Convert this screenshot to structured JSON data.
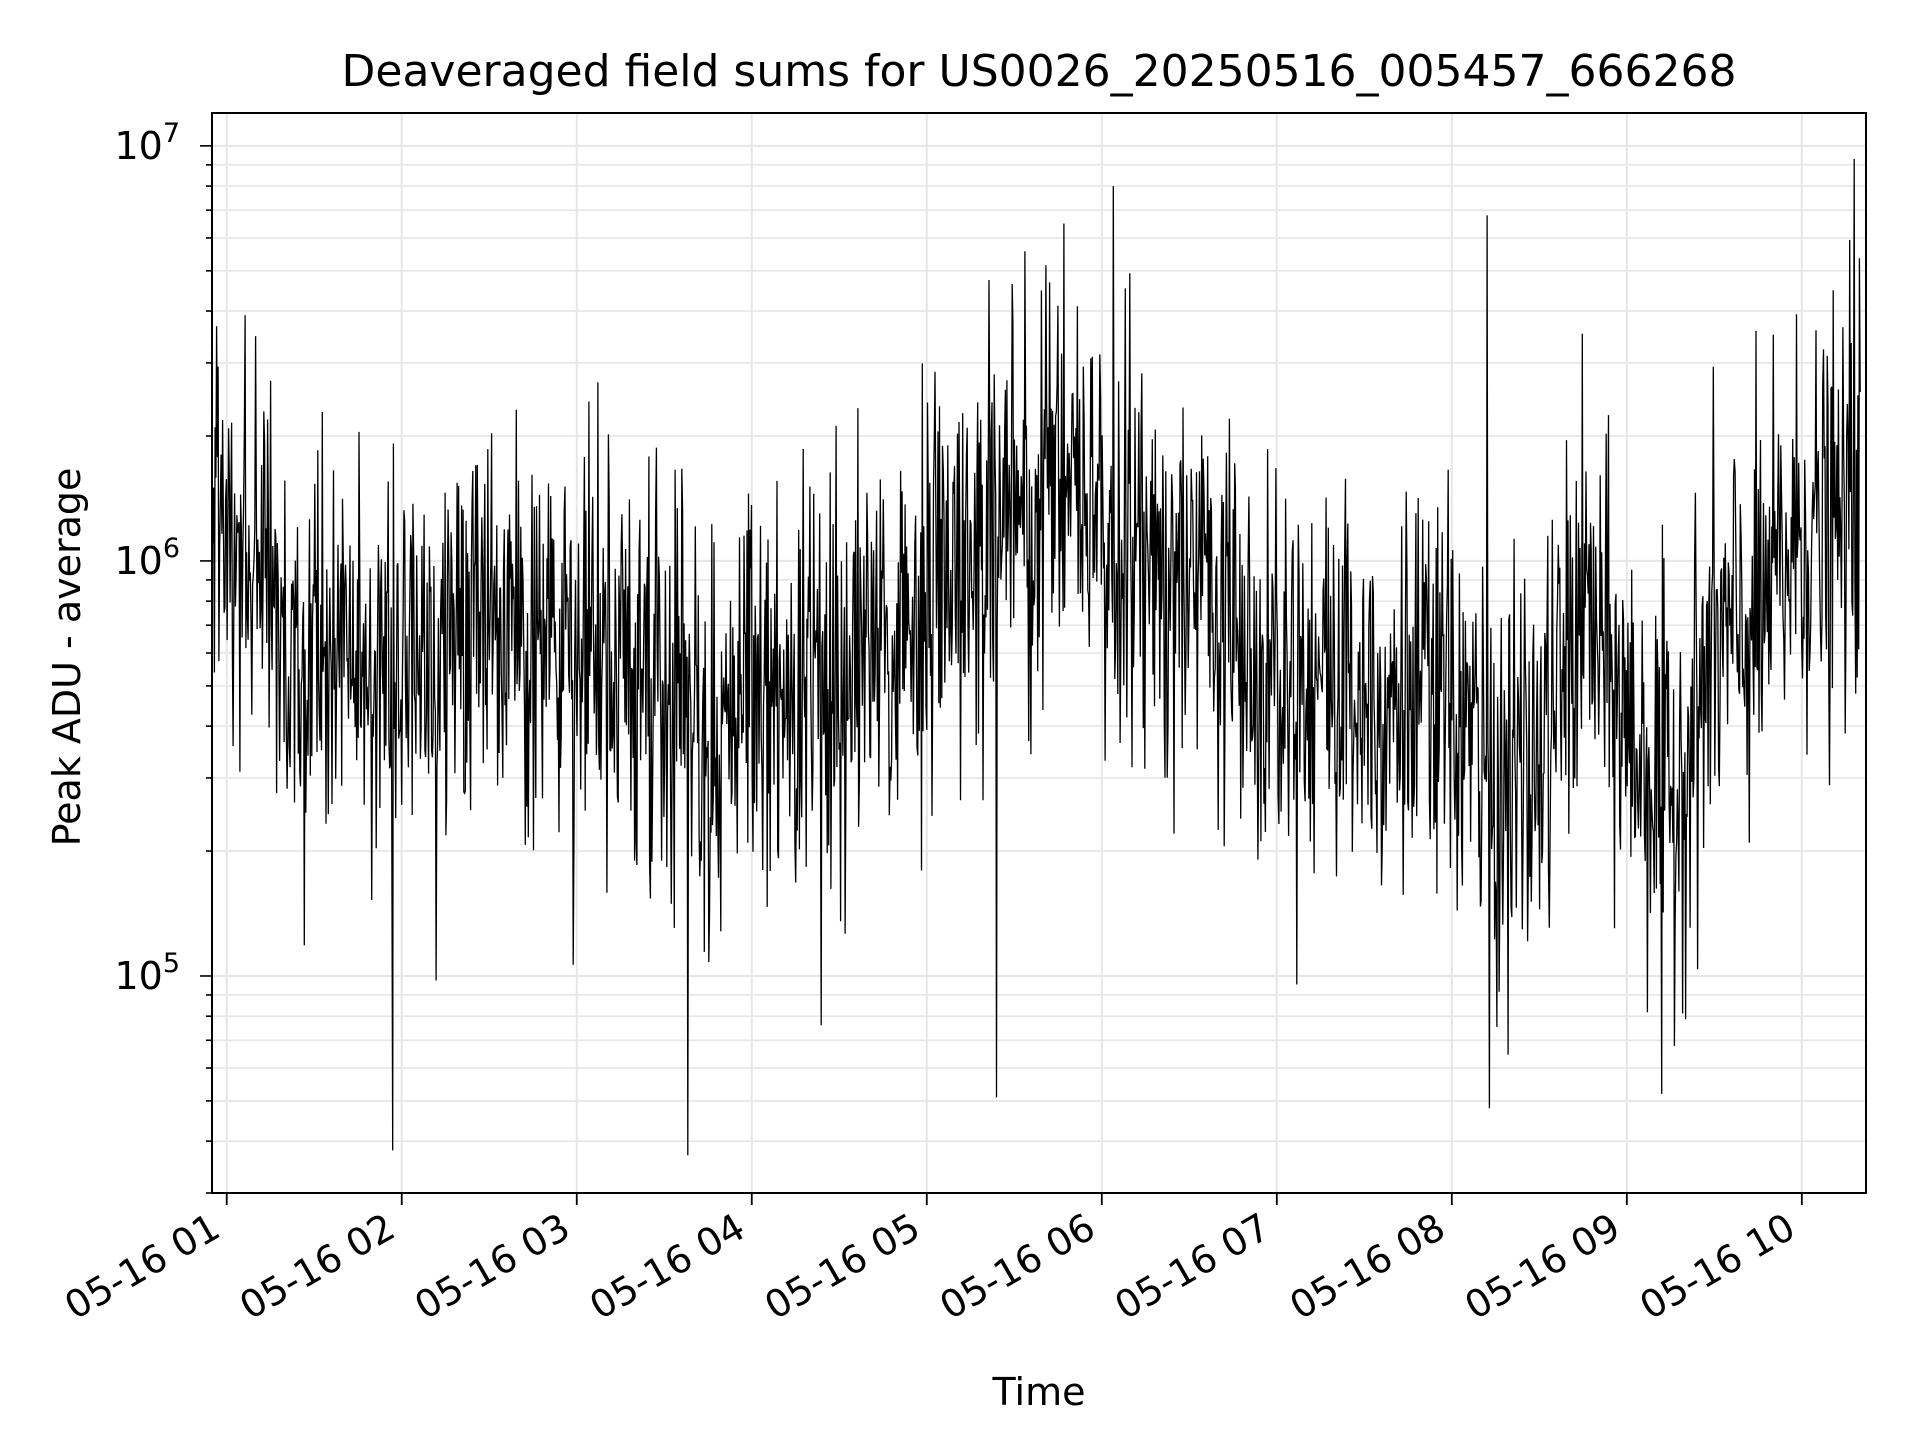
{
  "chart_data": {
    "type": "line",
    "title": "Deaveraged field sums for US0026_20250516_005457_666268",
    "xlabel": "Time",
    "ylabel": "Peak ADU - average",
    "yscale": "log",
    "ylim": [
      30000,
      12000000
    ],
    "xlim": [
      "2025-05-16 00:54:57",
      "2025-05-16 10:22:00"
    ],
    "grid": true,
    "line_color": "#000000",
    "grid_color": "#e6e6e6",
    "y_ticks": [
      {
        "base": "10",
        "exp": "5",
        "value": 100000
      },
      {
        "base": "10",
        "exp": "6",
        "value": 1000000
      },
      {
        "base": "10",
        "exp": "7",
        "value": 10000000
      }
    ],
    "x_ticks": [
      {
        "label": "05-16 01",
        "time": "2025-05-16 01:00"
      },
      {
        "label": "05-16 02",
        "time": "2025-05-16 02:00"
      },
      {
        "label": "05-16 03",
        "time": "2025-05-16 03:00"
      },
      {
        "label": "05-16 04",
        "time": "2025-05-16 04:00"
      },
      {
        "label": "05-16 05",
        "time": "2025-05-16 05:00"
      },
      {
        "label": "05-16 06",
        "time": "2025-05-16 06:00"
      },
      {
        "label": "05-16 07",
        "time": "2025-05-16 07:00"
      },
      {
        "label": "05-16 08",
        "time": "2025-05-16 08:00"
      },
      {
        "label": "05-16 09",
        "time": "2025-05-16 09:00"
      },
      {
        "label": "05-16 10",
        "time": "2025-05-16 10:00"
      }
    ],
    "series": [
      {
        "x": [
          "2025-05-16 00:55",
          "2025-05-16 01:10",
          "2025-05-16 01:20",
          "2025-05-16 01:40",
          "2025-05-16 02:00",
          "2025-05-16 02:30",
          "2025-05-16 03:00",
          "2025-05-16 03:30",
          "2025-05-16 03:45",
          "2025-05-16 04:00",
          "2025-05-16 04:30",
          "2025-05-16 05:00",
          "2025-05-16 05:30",
          "2025-05-16 05:45",
          "2025-05-16 06:00",
          "2025-05-16 06:30",
          "2025-05-16 07:00",
          "2025-05-16 07:30",
          "2025-05-16 08:00",
          "2025-05-16 08:15",
          "2025-05-16 08:30",
          "2025-05-16 08:45",
          "2025-05-16 09:00",
          "2025-05-16 09:15",
          "2025-05-16 09:30",
          "2025-05-16 09:45",
          "2025-05-16 10:00",
          "2025-05-16 10:10",
          "2025-05-16 10:20"
        ],
        "y": [
          1500000,
          1000000,
          600000,
          550000,
          550000,
          650000,
          550000,
          500000,
          400000,
          450000,
          550000,
          750000,
          1300000,
          1700000,
          1200000,
          900000,
          600000,
          500000,
          450000,
          280000,
          320000,
          800000,
          400000,
          250000,
          600000,
          700000,
          1200000,
          1100000,
          1600000
        ],
        "spikes_high": [
          {
            "x": "2025-05-16 05:47",
            "y": 6500000
          },
          {
            "x": "2025-05-16 06:04",
            "y": 8000000
          },
          {
            "x": "2025-05-16 08:12",
            "y": 6800000
          },
          {
            "x": "2025-05-16 10:18",
            "y": 9300000
          }
        ],
        "spikes_low": [
          {
            "x": "2025-05-16 01:57",
            "y": 38000
          },
          {
            "x": "2025-05-16 03:38",
            "y": 37000
          },
          {
            "x": "2025-05-16 05:24",
            "y": 51000
          },
          {
            "x": "2025-05-16 08:13",
            "y": 48000
          },
          {
            "x": "2025-05-16 09:12",
            "y": 52000
          }
        ]
      }
    ]
  }
}
